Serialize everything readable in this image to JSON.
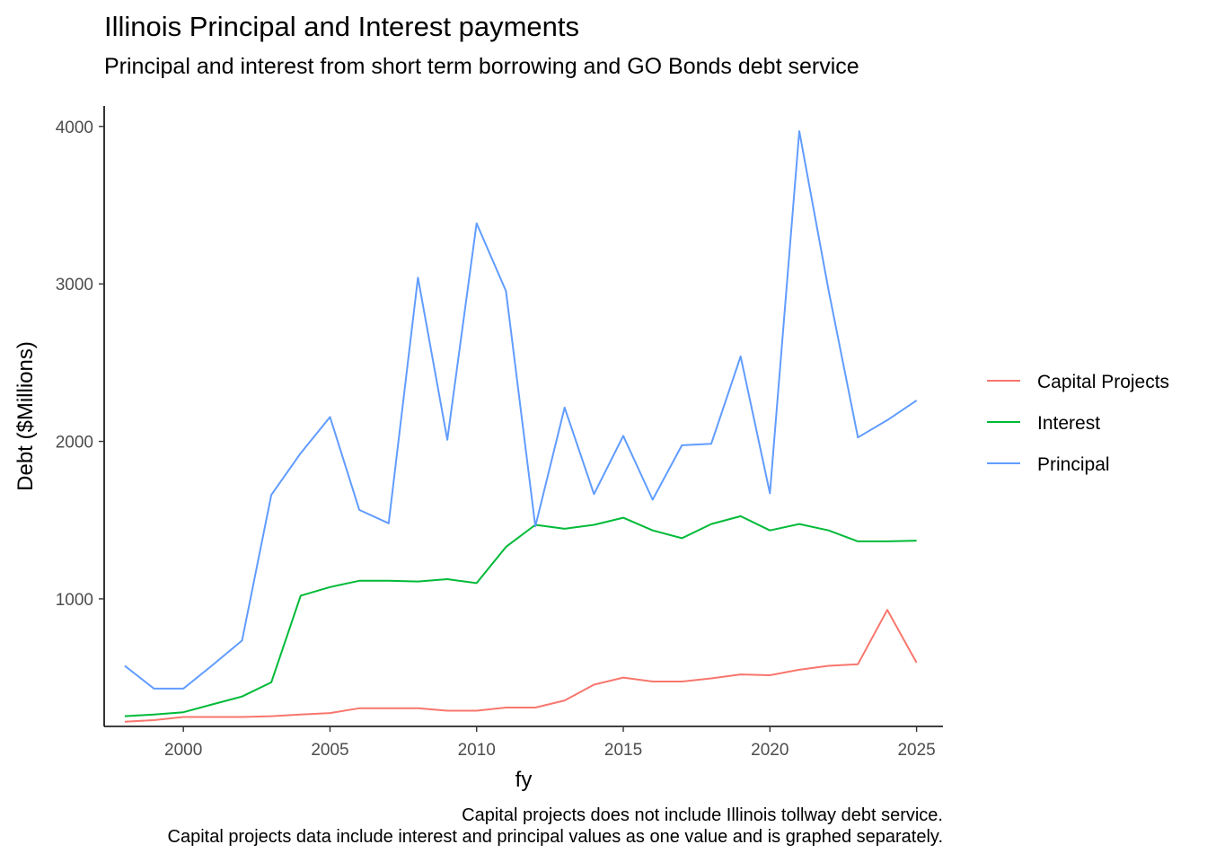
{
  "chart_data": {
    "type": "line",
    "title": "Illinois Principal and Interest payments",
    "subtitle": "Principal and interest from short term borrowing and GO Bonds debt service",
    "xlabel": "fy",
    "ylabel": "Debt ($Millions)",
    "xlim": [
      1997.3,
      2025.9
    ],
    "ylim": [
      190,
      4130
    ],
    "xticks": [
      2000,
      2005,
      2010,
      2015,
      2020,
      2025
    ],
    "yticks": [
      1000,
      2000,
      3000,
      4000
    ],
    "x": [
      1998,
      1999,
      2000,
      2001,
      2002,
      2003,
      2004,
      2005,
      2006,
      2007,
      2008,
      2009,
      2010,
      2011,
      2012,
      2013,
      2014,
      2015,
      2016,
      2017,
      2018,
      2019,
      2020,
      2021,
      2022,
      2023,
      2024,
      2025
    ],
    "legend_position": "right",
    "grid": false,
    "series": [
      {
        "name": "Capital Projects",
        "color": "#F8766D",
        "values": [
          220,
          230,
          250,
          250,
          250,
          255,
          265,
          275,
          305,
          305,
          305,
          290,
          290,
          310,
          310,
          355,
          455,
          500,
          475,
          475,
          495,
          520,
          515,
          550,
          575,
          585,
          930,
          595
        ]
      },
      {
        "name": "Interest",
        "color": "#00BA38",
        "values": [
          255,
          265,
          280,
          330,
          380,
          470,
          1020,
          1075,
          1115,
          1115,
          1110,
          1125,
          1100,
          1330,
          1470,
          1445,
          1470,
          1515,
          1435,
          1385,
          1475,
          1525,
          1435,
          1475,
          1435,
          1365,
          1365,
          1370
        ]
      },
      {
        "name": "Principal",
        "color": "#619CFF",
        "values": [
          575,
          430,
          430,
          580,
          735,
          1660,
          1925,
          2155,
          1565,
          1480,
          3040,
          2010,
          3385,
          2955,
          1460,
          2215,
          1665,
          2035,
          1630,
          1975,
          1985,
          2540,
          1670,
          3970,
          2960,
          2025,
          2135,
          2260
        ]
      }
    ],
    "caption": [
      "Capital projects does not include Illinois tollway debt service.",
      "Capital projects data include interest and principal values as one value and is graphed separately."
    ]
  }
}
